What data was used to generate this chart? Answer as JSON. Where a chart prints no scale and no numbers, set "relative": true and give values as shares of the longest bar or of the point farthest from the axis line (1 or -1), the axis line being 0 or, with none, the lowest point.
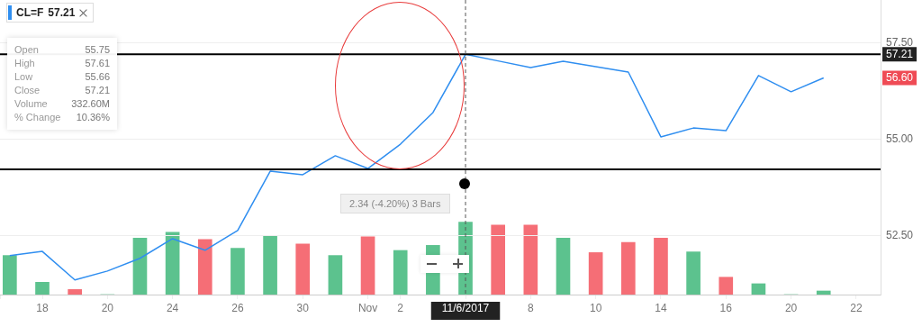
{
  "chart_data": [
    {
      "type": "line",
      "categories": [
        null,
        "18",
        null,
        "20",
        null,
        "24",
        null,
        "26",
        null,
        "30",
        null,
        "Nov",
        "2",
        null,
        "11/6/2017",
        null,
        "8",
        null,
        "10",
        null,
        "14",
        null,
        "16",
        null,
        "20",
        null,
        "22"
      ],
      "series": [
        {
          "name": "CL=F",
          "color": "#2f8ef0",
          "values": [
            51.99,
            52.1,
            51.36,
            51.59,
            51.92,
            52.43,
            52.13,
            52.64,
            54.18,
            54.09,
            54.58,
            54.25,
            54.88,
            55.7,
            57.21,
            57.04,
            56.87,
            57.03,
            56.89,
            56.75,
            55.07,
            55.3,
            55.23,
            56.66,
            56.24,
            56.6,
            null
          ]
        }
      ],
      "ylim": [
        50.98,
        58.62
      ],
      "yticks": [
        {
          "value": 52.5,
          "label": "52.50"
        },
        {
          "value": 55,
          "label": "55.00"
        },
        {
          "value": 57.5,
          "label": "57.50"
        }
      ],
      "grid": "y",
      "legend": "top left",
      "ref_lines": [
        {
          "axis": "y",
          "value": 57.21,
          "label": "57.21",
          "color": "#000000"
        },
        {
          "axis": "y",
          "value": 54.23,
          "color": "#000000"
        },
        {
          "axis": "x",
          "value": "11/6/2017",
          "color": "#555555",
          "line_style": "dashed"
        }
      ],
      "annotations": [
        "Open",
        "55.75",
        "High",
        "57.61",
        "Low",
        "55.66",
        "Close",
        "57.21",
        "Volume",
        "332.60M",
        "% Change",
        "10.36%",
        "57.21",
        "2.34 (-4.20%) 3 Bars",
        {
          "text": "56.60",
          "y": 56.6
        }
      ]
    },
    {
      "type": "bar",
      "relative": true,
      "categories": [
        null,
        null,
        null,
        null,
        null,
        null,
        null,
        null,
        null,
        null,
        null,
        null,
        null,
        null,
        null,
        null,
        null,
        null,
        null,
        null,
        null,
        null,
        null,
        null,
        null,
        null,
        null
      ],
      "colors": [
        "#5cc28e",
        "#5cc28e",
        "#f56e76",
        "#5cc28e",
        "#5cc28e",
        "#5cc28e",
        "#f56e76",
        "#5cc28e",
        "#5cc28e",
        "#f56e76",
        "#5cc28e",
        "#f56e76",
        "#5cc28e",
        "#5cc28e",
        "#5cc28e",
        "#f56e76",
        "#f56e76",
        "#5cc28e",
        "#f56e76",
        "#f56e76",
        "#f56e76",
        "#5cc28e",
        "#f56e76",
        "#5cc28e",
        "#5cc28e",
        "#5cc28e",
        "#5cc28e"
      ],
      "values": [
        0.54,
        0.17,
        0.07,
        0,
        0.78,
        0.86,
        0.76,
        0.64,
        0.81,
        0.7,
        0.54,
        0.8,
        0.61,
        0.68,
        1,
        0.96,
        0.96,
        0.78,
        0.58,
        0.72,
        0.78,
        0.59,
        0.24,
        0.15,
        0,
        0.05,
        null
      ]
    }
  ]
}
